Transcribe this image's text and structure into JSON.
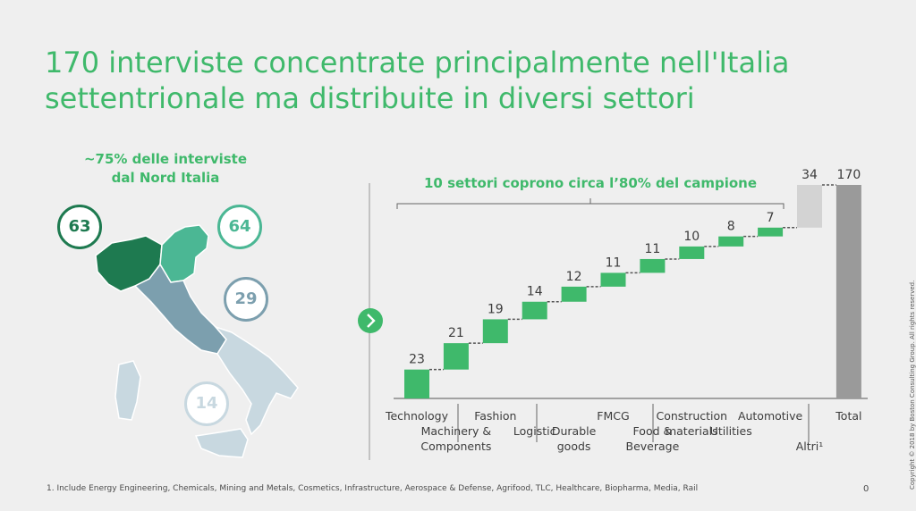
{
  "title": "170 interviste concentrate principalmente nell'Italia settentrionale ma distribuite in diversi settori",
  "map": {
    "heading_line1": "~75% delle interviste",
    "heading_line2": "dal Nord Italia",
    "regions": [
      {
        "value": "63",
        "color": "#1e7a50"
      },
      {
        "value": "64",
        "color": "#4bb794"
      },
      {
        "value": "29",
        "color": "#7c9fae"
      },
      {
        "value": "14",
        "color": "#c8d8e0"
      }
    ]
  },
  "bracket_label": "10 settori coprono circa l’80% del campione",
  "footnote": "1. Include Energy Engineering, Chemicals, Mining and Metals, Cosmetics, Infrastructure, Aerospace & Defense, Agrifood, TLC, Healthcare, Biopharma, Media, Rail",
  "page_number": "0",
  "copyright": "Copyright © 2018 by Boston Consulting Group. All rights reserved.",
  "colors": {
    "accent": "#3fb96b",
    "others": "#d3d3d3",
    "total": "#9a9a9a",
    "background": "#efefef"
  },
  "icons": {
    "arrow": "chevron-right-icon"
  },
  "chart_data": {
    "type": "bar",
    "subtype": "waterfall",
    "categories": [
      "Technology",
      "Machinery & Components",
      "Fashion",
      "Logistic",
      "Durable goods",
      "FMCG",
      "Food & Beverage",
      "Construction materials",
      "Utilities",
      "Automotive",
      "Altri¹",
      "Total"
    ],
    "category_lines": [
      [
        "Technology"
      ],
      [
        "Machinery &",
        "Components"
      ],
      [
        "Fashion"
      ],
      [
        "Logistic"
      ],
      [
        "Durable",
        "goods"
      ],
      [
        "FMCG"
      ],
      [
        "Food &",
        "Beverage"
      ],
      [
        "Construction",
        "materials"
      ],
      [
        "Utilities"
      ],
      [
        "Automotive"
      ],
      [
        "Altri¹"
      ],
      [
        "Total"
      ]
    ],
    "values": [
      23,
      21,
      19,
      14,
      12,
      11,
      11,
      10,
      8,
      7,
      34,
      170
    ],
    "labels": [
      "23",
      "21",
      "19",
      "14",
      "12",
      "11",
      "11",
      "10",
      "8",
      "7",
      "34",
      "170"
    ],
    "bar_kind": [
      "step",
      "step",
      "step",
      "step",
      "step",
      "step",
      "step",
      "step",
      "step",
      "step",
      "others",
      "total"
    ],
    "ylim": [
      0,
      170
    ],
    "grid": false,
    "legend": "none"
  }
}
